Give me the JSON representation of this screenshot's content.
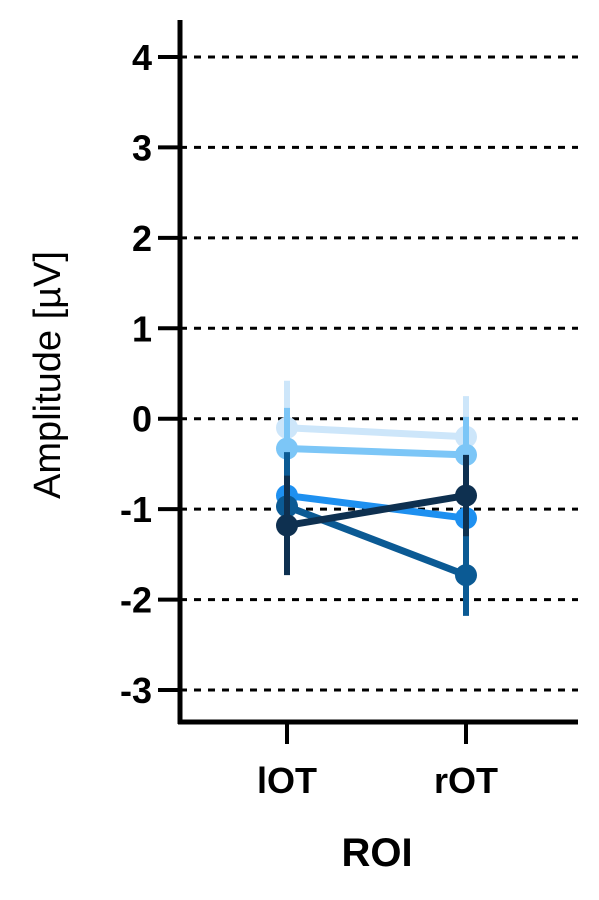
{
  "chart_data": {
    "type": "line",
    "xlabel": "ROI",
    "ylabel": "Amplitude [µV]",
    "categories": [
      "lOT",
      "rOT"
    ],
    "ylim": [
      -3.4,
      4.4
    ],
    "yticks": [
      "4",
      "3",
      "2",
      "1",
      "0",
      "-1",
      "-2",
      "-3"
    ],
    "ytick_values": [
      4,
      3,
      2,
      1,
      0,
      -1,
      -2,
      -3
    ],
    "grid": "dashed horizontal at y ticks",
    "series": [
      {
        "color": "#cde6fa",
        "values": [
          -0.1,
          -0.2
        ],
        "errors": [
          0.52,
          0.45
        ]
      },
      {
        "color": "#7cc6f7",
        "values": [
          -0.33,
          -0.4
        ],
        "errors": [
          0.45,
          0.42
        ]
      },
      {
        "color": "#1e90f0",
        "values": [
          -0.85,
          -1.1
        ],
        "errors": [
          0.4,
          0.55
        ]
      },
      {
        "color": "#0b5a94",
        "values": [
          -0.97,
          -1.73
        ],
        "errors": [
          0.6,
          0.45
        ]
      },
      {
        "color": "#0e3050",
        "values": [
          -1.18,
          -0.85
        ],
        "errors": [
          0.55,
          0.45
        ]
      }
    ]
  }
}
